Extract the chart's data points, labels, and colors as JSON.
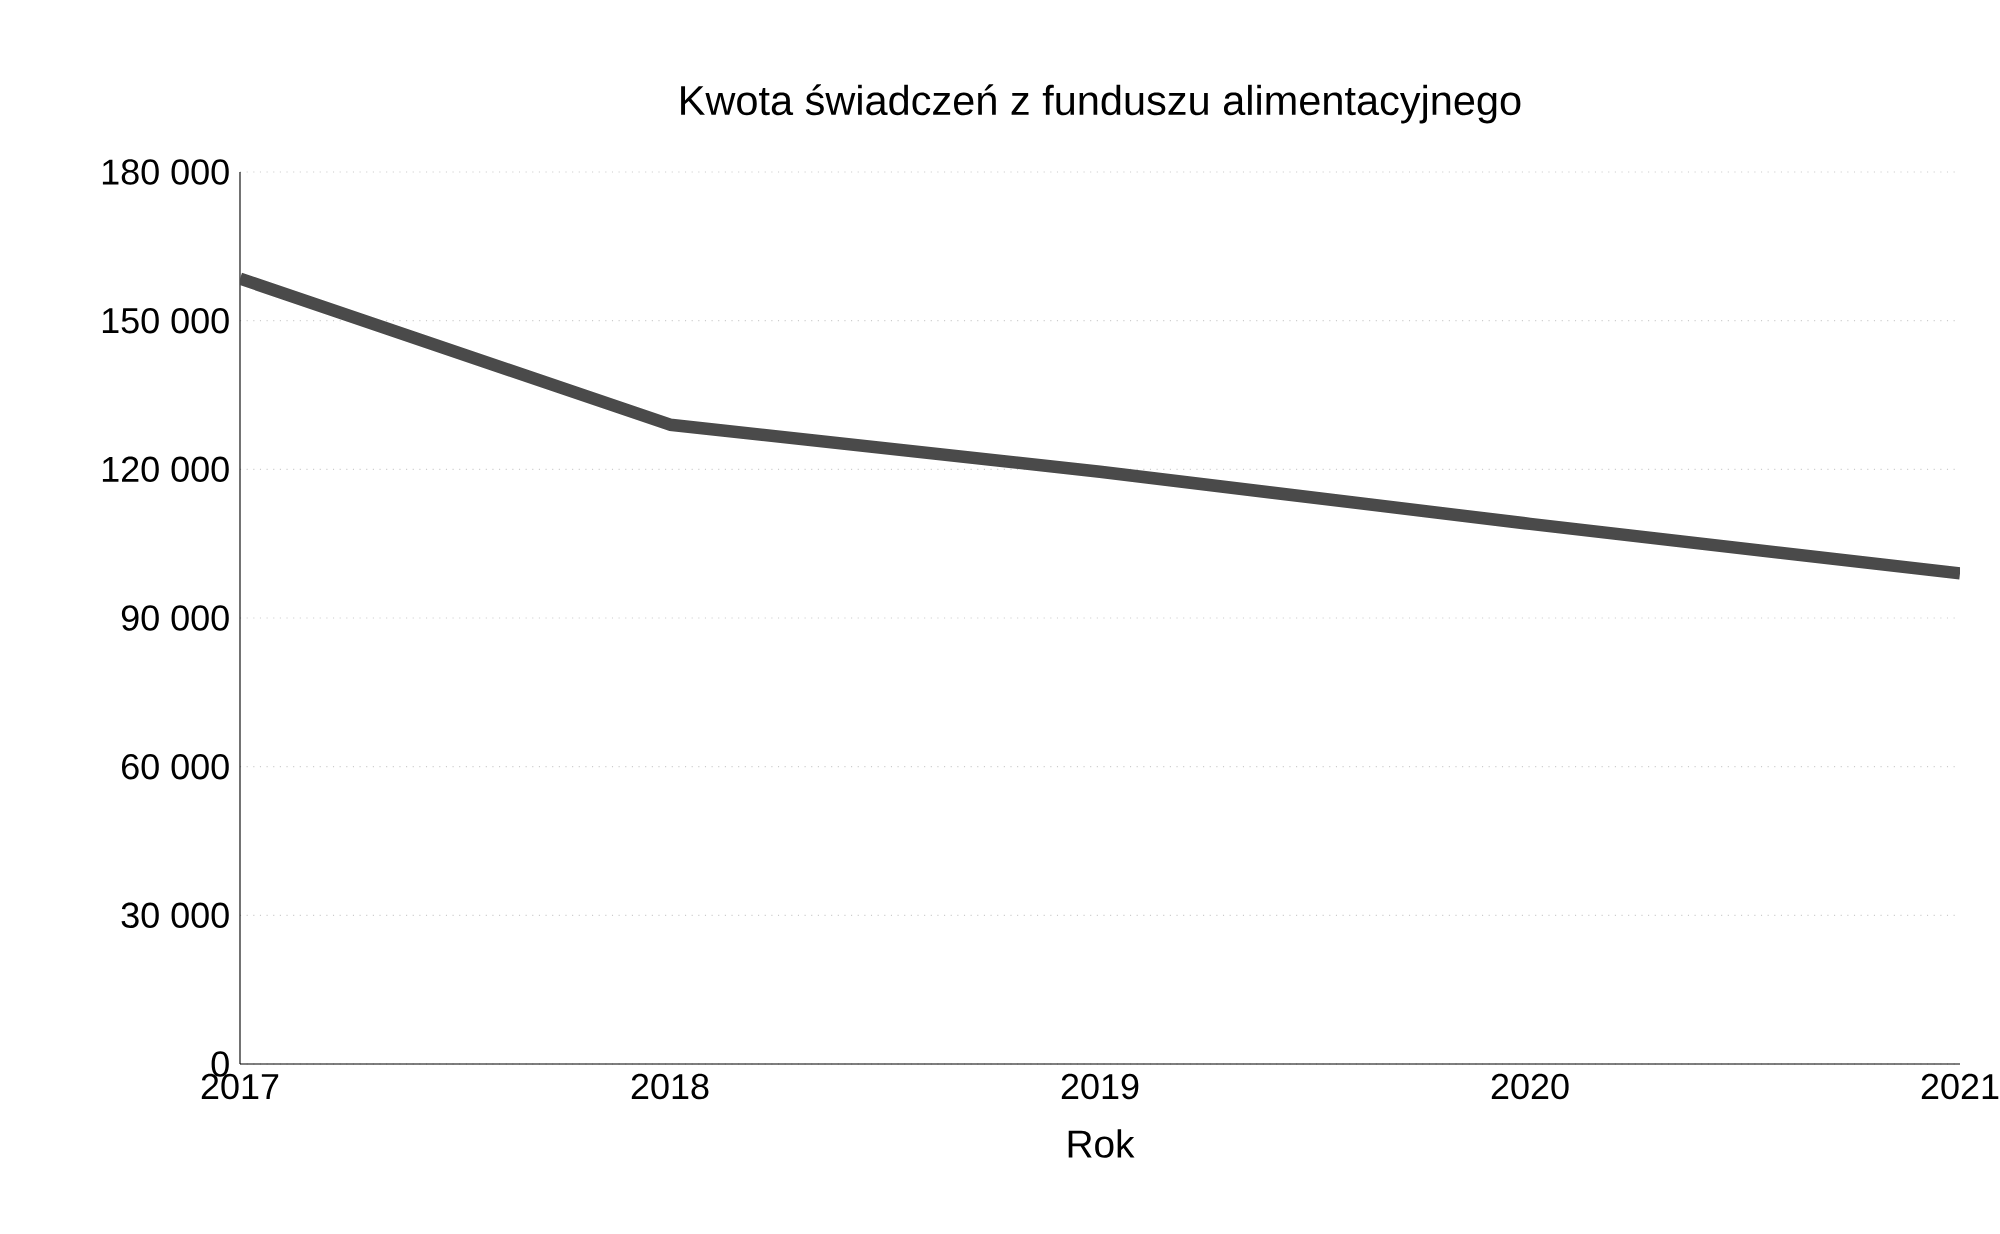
{
  "chart_data": {
    "type": "line",
    "title": "Kwota świadczeń z funduszu alimentacyjnego",
    "xlabel": "Rok",
    "x": [
      2017,
      2018,
      2019,
      2020,
      2021
    ],
    "series": [
      {
        "color": "#4a4a4a",
        "values": [
          158500,
          129000,
          119500,
          109000,
          99000
        ]
      }
    ],
    "xlim": [
      2017,
      2021
    ],
    "xticks": [
      2017,
      2018,
      2019,
      2020,
      2021
    ],
    "ylim": [
      0,
      180000
    ],
    "yticks": [
      {
        "value": 0,
        "label": "0"
      },
      {
        "value": 30000,
        "label": "30 000"
      },
      {
        "value": 60000,
        "label": "60 000"
      },
      {
        "value": 90000,
        "label": "90 000"
      },
      {
        "value": 120000,
        "label": "120 000"
      },
      {
        "value": 150000,
        "label": "150 000"
      },
      {
        "value": 180000,
        "label": "180 000"
      }
    ],
    "grid": "y",
    "marker": "none",
    "line_style": "solid"
  }
}
